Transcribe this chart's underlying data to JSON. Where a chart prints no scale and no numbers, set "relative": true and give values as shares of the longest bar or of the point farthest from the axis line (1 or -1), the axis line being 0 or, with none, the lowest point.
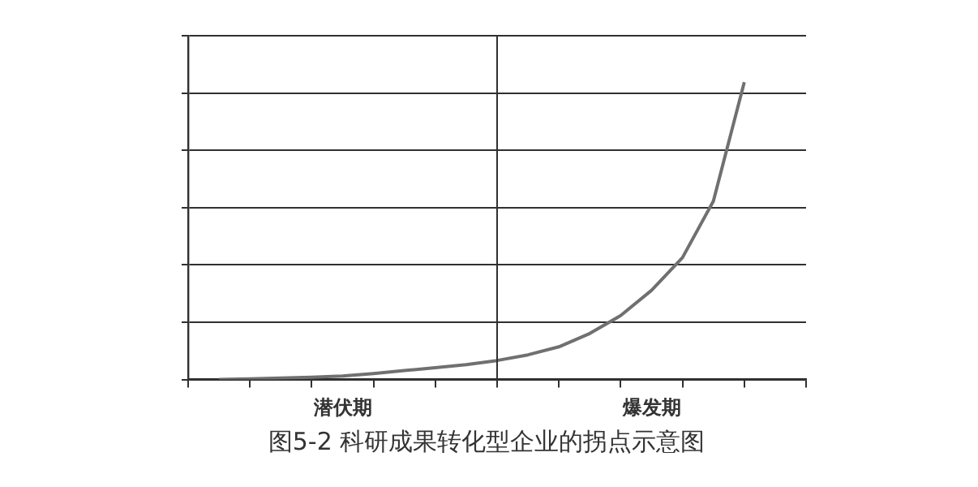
{
  "chart_data": {
    "type": "line",
    "relative": true,
    "categories": [
      null,
      null,
      null,
      null,
      null,
      null,
      null,
      null,
      null,
      null,
      null,
      null,
      null,
      null,
      null,
      null,
      null,
      null,
      null,
      null,
      null
    ],
    "series": [
      {
        "color": "#707070",
        "values": [
          null,
          0,
          0.002,
          0.005,
          0.008,
          0.012,
          0.02,
          0.03,
          0.04,
          0.05,
          0.064,
          0.083,
          0.11,
          0.155,
          0.215,
          0.3,
          0.41,
          0.6,
          1,
          null,
          null
        ]
      }
    ],
    "grid": "y",
    "marker": "none",
    "line_style": "solid",
    "legend": false,
    "annotations": [
      "潜伏期",
      "爆发期",
      "图5-2 科研成果转化型企业的拐点示意图"
    ]
  }
}
